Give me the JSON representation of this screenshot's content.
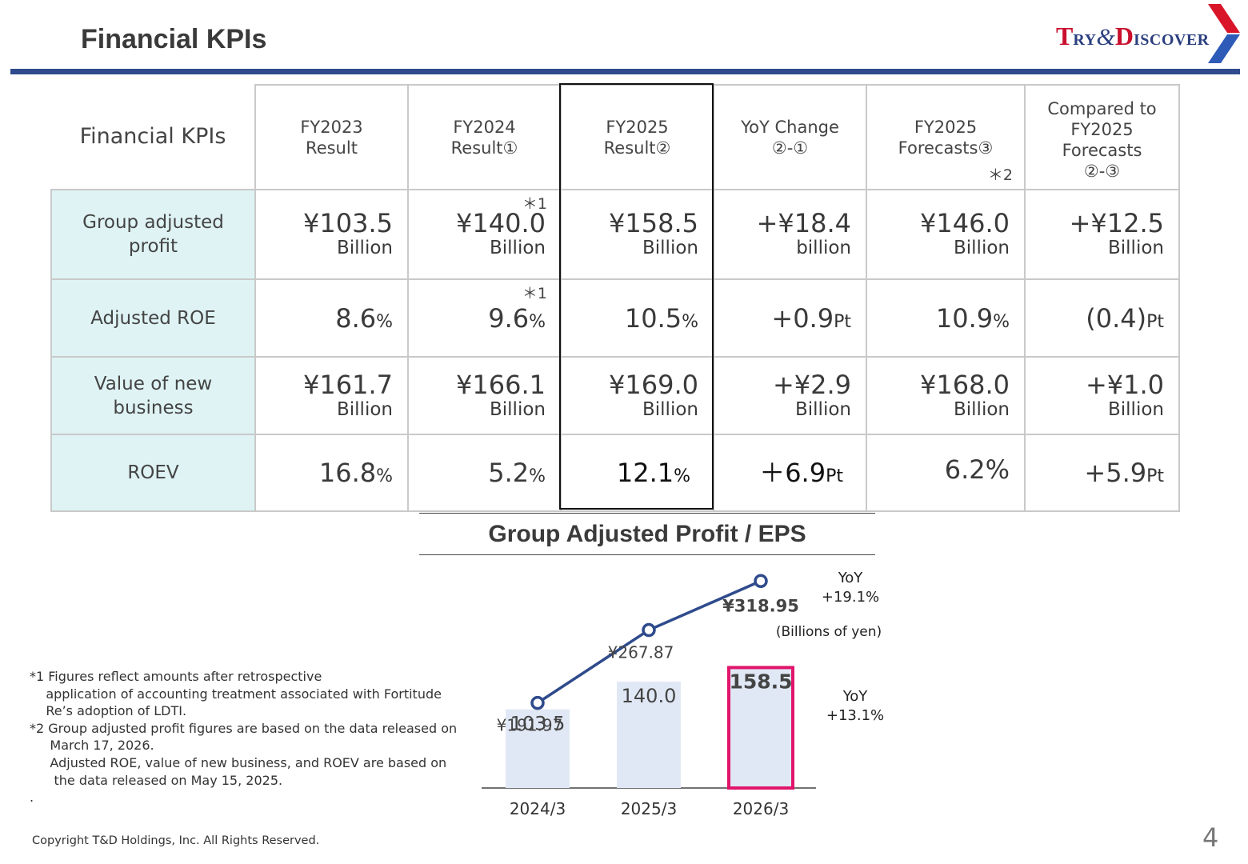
{
  "header": {
    "title": "Financial KPIs",
    "logo": {
      "text": "TRY&DISCOVER",
      "part1_big": "T",
      "part1_small": "RY",
      "amp": "&",
      "part2_big": "D",
      "part2_small": "ISCOVER"
    }
  },
  "kpi_table": {
    "corner_label": "Financial KPIs",
    "columns": [
      {
        "line1": "FY2023",
        "line2": "Result",
        "line3": "",
        "note": ""
      },
      {
        "line1": "FY2024",
        "line2": "Result①",
        "line3": "",
        "note": ""
      },
      {
        "line1": "FY2025",
        "line2": "Result②",
        "line3": "",
        "note": ""
      },
      {
        "line1": "YoY Change",
        "line2": "②-①",
        "line3": "",
        "note": ""
      },
      {
        "line1": "FY2025",
        "line2": "Forecasts③",
        "line3": "",
        "note": "＊2"
      },
      {
        "line1": "Compared to",
        "line2": "FY2025",
        "line3": "Forecasts",
        "line4": "②-③",
        "note": ""
      }
    ],
    "rows": [
      {
        "label_line1": "Group adjusted",
        "label_line2": "profit",
        "cells": [
          {
            "num": "¥103.5",
            "suffix": "",
            "unit": "Billion",
            "star": ""
          },
          {
            "num": "¥140.0",
            "suffix": "",
            "unit": "Billion",
            "star": "＊1"
          },
          {
            "num": "¥158.5",
            "suffix": "",
            "unit": "Billion",
            "star": ""
          },
          {
            "num": "+¥18.4",
            "suffix": "",
            "unit": "billion",
            "star": ""
          },
          {
            "num": "¥146.0",
            "suffix": "",
            "unit": "Billion",
            "star": ""
          },
          {
            "num": "+¥12.5",
            "suffix": "",
            "unit": "Billion",
            "star": ""
          }
        ]
      },
      {
        "label_line1": "Adjusted ROE",
        "label_line2": "",
        "cells": [
          {
            "num": "8.6",
            "suffix": "%",
            "unit": "",
            "star": ""
          },
          {
            "num": "9.6",
            "suffix": "%",
            "unit": "",
            "star": "＊1"
          },
          {
            "num": "10.5",
            "suffix": "%",
            "unit": "",
            "star": ""
          },
          {
            "num": "+0.9",
            "suffix": "Pt",
            "unit": "",
            "star": ""
          },
          {
            "num": "10.9",
            "suffix": "%",
            "unit": "",
            "star": ""
          },
          {
            "num": "(0.4)",
            "suffix": "Pt",
            "unit": "",
            "star": ""
          }
        ]
      },
      {
        "label_line1": "Value of new",
        "label_line2": "business",
        "cells": [
          {
            "num": "¥161.7",
            "suffix": "",
            "unit": "Billion",
            "star": ""
          },
          {
            "num": "¥166.1",
            "suffix": "",
            "unit": "Billion",
            "star": ""
          },
          {
            "num": "¥169.0",
            "suffix": "",
            "unit": "Billion",
            "star": ""
          },
          {
            "num": "+¥2.9",
            "suffix": "",
            "unit": "Billion",
            "star": ""
          },
          {
            "num": "¥168.0",
            "suffix": "",
            "unit": "Billion",
            "star": ""
          },
          {
            "num": "+¥1.0",
            "suffix": "",
            "unit": "Billion",
            "star": ""
          }
        ]
      },
      {
        "label_line1": "ROEV",
        "label_line2": "",
        "cells": [
          {
            "num": "16.8",
            "suffix": "%",
            "unit": "",
            "star": ""
          },
          {
            "num": "5.2",
            "suffix": "%",
            "unit": "",
            "star": ""
          },
          {
            "num": "12.1",
            "suffix": "%",
            "unit": "",
            "star": ""
          },
          {
            "num": "＋6.9",
            "suffix": "Pt",
            "unit": "",
            "star": ""
          },
          {
            "num": "6.2%",
            "suffix": "",
            "unit": "",
            "star": ""
          },
          {
            "num": "+5.9",
            "suffix": "Pt",
            "unit": "",
            "star": ""
          }
        ]
      }
    ]
  },
  "chart_title": "Group Adjusted Profit / EPS",
  "chart_data": {
    "type": "bar",
    "title": "Group Adjusted Profit / EPS",
    "categories": [
      "2024/3",
      "2025/3",
      "2026/3"
    ],
    "bar_unit_label": "(Billions of yen)",
    "series": [
      {
        "name": "Group Adjusted Profit",
        "values": [
          103.5,
          140.0,
          158.5
        ],
        "labels": [
          "103.5",
          "140.0",
          "158.5"
        ],
        "color": "#e1e8f5",
        "highlight_color": "#e0156b"
      },
      {
        "name": "EPS",
        "type": "line",
        "values": [
          191.97,
          267.87,
          318.95
        ],
        "labels": [
          "¥191.97",
          "¥267.87",
          "¥318.95"
        ],
        "color": "#2f4b8c"
      }
    ],
    "annotations": {
      "eps_yoy_line1": "YoY",
      "eps_yoy_line2": "+19.1%",
      "profit_yoy_line1": "YoY",
      "profit_yoy_line2": "+13.1%"
    }
  },
  "footnotes": {
    "text": "*1 Figures reflect amounts after retrospective\n    application of accounting treatment associated with Fortitude\n    Re’s adoption of LDTI.\n*2 Group adjusted profit figures are based on the data released on\n     March 17, 2026.\n     Adjusted ROE, value of new business, and ROEV are based on\n      the data released on May 15, 2025.\n."
  },
  "footer": {
    "copyright": "Copyright T&D Holdings, Inc. All Rights Reserved.",
    "page_number": "4"
  }
}
